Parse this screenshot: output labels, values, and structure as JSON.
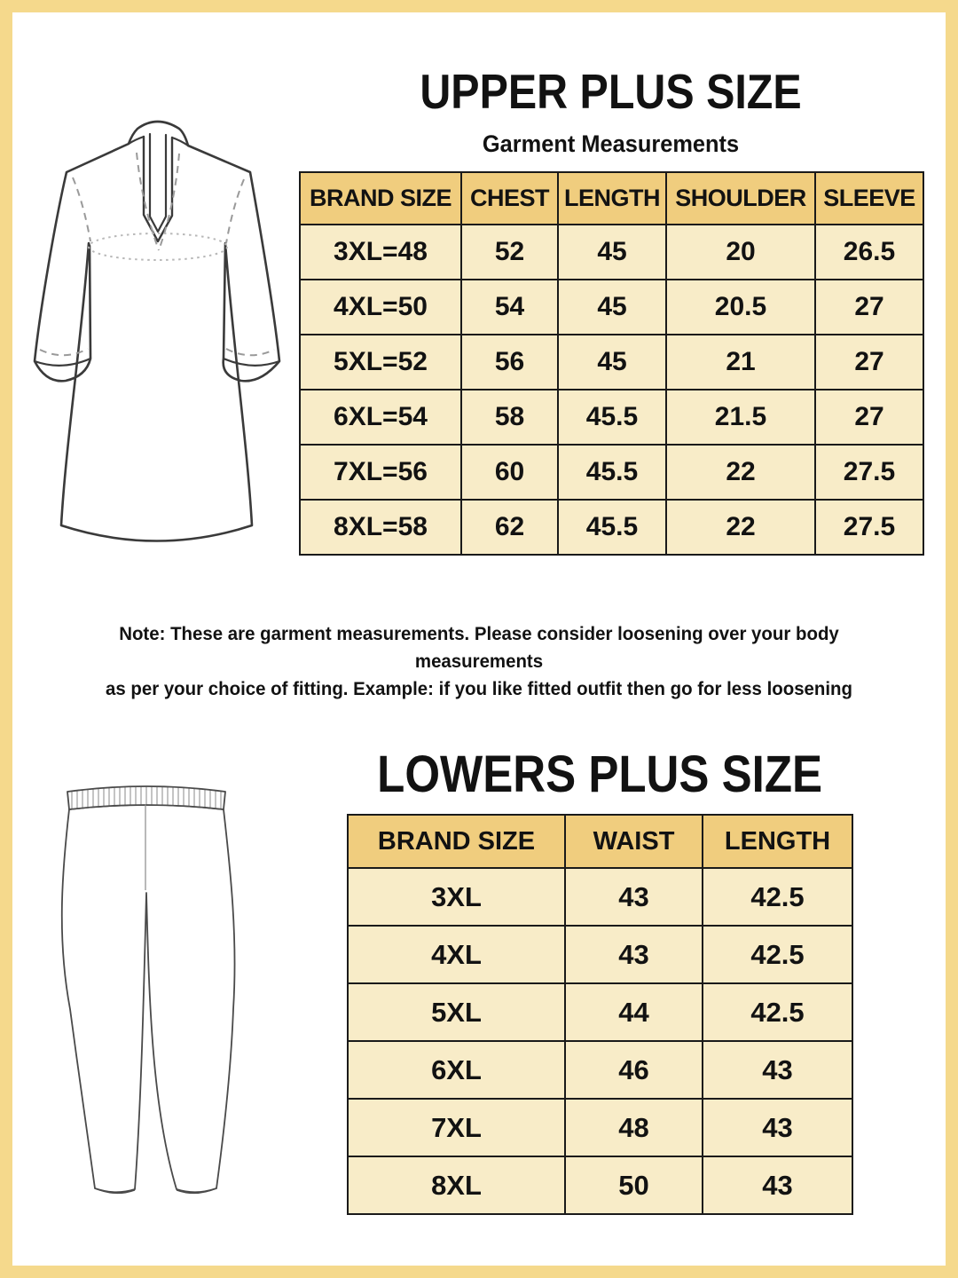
{
  "colors": {
    "frame_border": "#f5d98c",
    "table_header_bg": "#f0cd7e",
    "table_cell_bg": "#f8ecc8",
    "table_line": "#1a1a1a",
    "text": "#121212",
    "drawing_outline": "#3a3a3a"
  },
  "icons": {
    "kurta": "kurta-line-drawing",
    "pants": "leggings-line-drawing"
  },
  "upper": {
    "title": "UPPER PLUS SIZE",
    "subtitle": "Garment Measurements",
    "table": {
      "headers": [
        "BRAND SIZE",
        "CHEST",
        "LENGTH",
        "SHOULDER",
        "SLEEVE"
      ],
      "rows": [
        [
          "3XL=48",
          "52",
          "45",
          "20",
          "26.5"
        ],
        [
          "4XL=50",
          "54",
          "45",
          "20.5",
          "27"
        ],
        [
          "5XL=52",
          "56",
          "45",
          "21",
          "27"
        ],
        [
          "6XL=54",
          "58",
          "45.5",
          "21.5",
          "27"
        ],
        [
          "7XL=56",
          "60",
          "45.5",
          "22",
          "27.5"
        ],
        [
          "8XL=58",
          "62",
          "45.5",
          "22",
          "27.5"
        ]
      ]
    }
  },
  "note": {
    "line1": "Note: These are garment measurements. Please consider loosening over your body measurements",
    "line2": "as per your choice of fitting. Example: if you like fitted outfit then go for less loosening"
  },
  "lower": {
    "title": "LOWERS PLUS SIZE",
    "table": {
      "headers": [
        "BRAND SIZE",
        "WAIST",
        "LENGTH"
      ],
      "rows": [
        [
          "3XL",
          "43",
          "42.5"
        ],
        [
          "4XL",
          "43",
          "42.5"
        ],
        [
          "5XL",
          "44",
          "42.5"
        ],
        [
          "6XL",
          "46",
          "43"
        ],
        [
          "7XL",
          "48",
          "43"
        ],
        [
          "8XL",
          "50",
          "43"
        ]
      ]
    }
  }
}
